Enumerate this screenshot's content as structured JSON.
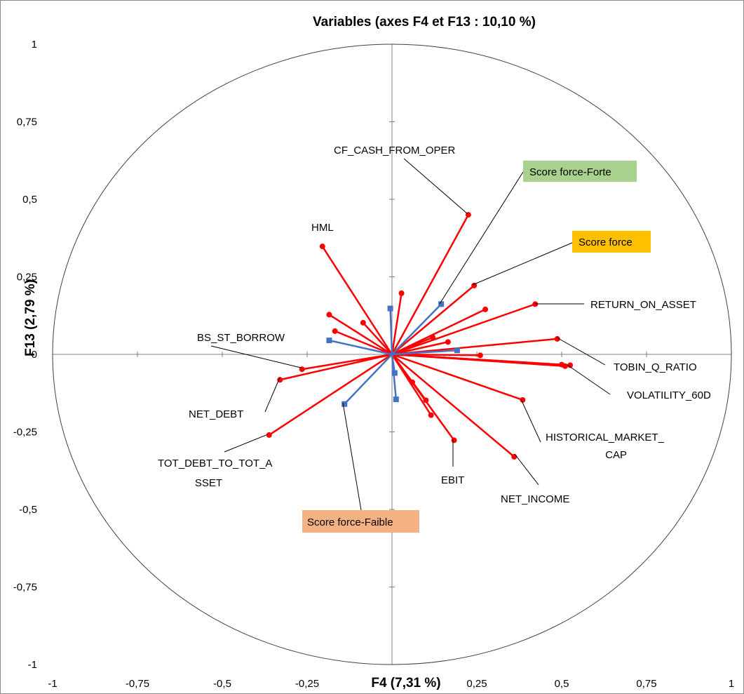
{
  "chart_data": {
    "type": "scatter",
    "title": "Variables (axes F4 et F13 : 10,10 %)",
    "xlabel": "F4 (7,31 %)",
    "ylabel": "F13 (2,79 %)",
    "xlim": [
      -1,
      1
    ],
    "ylim": [
      -1,
      1
    ],
    "grid": false,
    "unit_circle": true,
    "x_ticks": [
      -1,
      -0.75,
      -0.5,
      -0.25,
      0.25,
      0.5,
      0.75,
      1
    ],
    "x_tick_labels": [
      "-1",
      "-0,75",
      "-0,5",
      "-0,25",
      "0,25",
      "0,5",
      "0,75",
      "1"
    ],
    "y_ticks": [
      1,
      0.75,
      0.5,
      0.25,
      0,
      -0.25,
      -0.5,
      -0.75,
      -1
    ],
    "y_tick_labels": [
      "1",
      "0,75",
      "0,5",
      "0,25",
      "0",
      "-0,25",
      "-0,5",
      "-0,75",
      "-1"
    ],
    "colors": {
      "active": "#ff0000",
      "supplementary": "#4472c4",
      "axis": "#808080",
      "circle": "#404040"
    },
    "series": [
      {
        "name": "active",
        "color": "#ff0000",
        "marker": "circle",
        "points": [
          {
            "x": 0.225,
            "y": 0.45,
            "label": "CF_CASH_FROM_OPER"
          },
          {
            "x": -0.205,
            "y": 0.348,
            "label": "HML"
          },
          {
            "x": 0.242,
            "y": 0.222
          },
          {
            "x": 0.422,
            "y": 0.162,
            "label": "RETURN_ON_ASSET"
          },
          {
            "x": 0.275,
            "y": 0.145
          },
          {
            "x": 0.028,
            "y": 0.197
          },
          {
            "x": -0.185,
            "y": 0.128
          },
          {
            "x": -0.085,
            "y": 0.102
          },
          {
            "x": -0.168,
            "y": 0.075
          },
          {
            "x": 0.12,
            "y": 0.055
          },
          {
            "x": 0.165,
            "y": 0.04
          },
          {
            "x": 0.487,
            "y": 0.05,
            "label": "TOBIN_Q_RATIO"
          },
          {
            "x": 0.26,
            "y": -0.003
          },
          {
            "x": 0.525,
            "y": -0.035,
            "label": "VOLATILITY_60D"
          },
          {
            "x": 0.51,
            "y": -0.038
          },
          {
            "x": 0.5,
            "y": -0.033
          },
          {
            "x": -0.265,
            "y": -0.048,
            "label": "BS_ST_BORROW"
          },
          {
            "x": -0.33,
            "y": -0.082,
            "label": "NET_DEBT"
          },
          {
            "x": -0.362,
            "y": -0.26,
            "label": "TOT_DEBT_TO_TOT_ASSET"
          },
          {
            "x": 0.385,
            "y": -0.147,
            "label": "HISTORICAL_MARKET_CAP"
          },
          {
            "x": 0.36,
            "y": -0.33,
            "label": "NET_INCOME"
          },
          {
            "x": 0.183,
            "y": -0.277,
            "label": "EBIT"
          },
          {
            "x": 0.115,
            "y": -0.196
          },
          {
            "x": 0.1,
            "y": -0.148
          },
          {
            "x": 0.06,
            "y": -0.09
          }
        ]
      },
      {
        "name": "supplementary",
        "color": "#4472c4",
        "marker": "square",
        "points": [
          {
            "x": 0.145,
            "y": 0.162,
            "label": "Score force-Forte"
          },
          {
            "x": -0.005,
            "y": 0.148
          },
          {
            "x": -0.185,
            "y": 0.045
          },
          {
            "x": 0.192,
            "y": 0.013
          },
          {
            "x": 0.008,
            "y": -0.06
          },
          {
            "x": 0.012,
            "y": -0.145
          },
          {
            "x": -0.14,
            "y": -0.16,
            "label": "Score force-Faible"
          }
        ]
      }
    ],
    "annotations": [
      {
        "text": "CF_CASH_FROM_OPER"
      },
      {
        "text": "HML"
      },
      {
        "text": "Score force-Forte",
        "background": "#a9d18e"
      },
      {
        "text": "Score force",
        "background": "#ffc000"
      },
      {
        "text": "RETURN_ON_ASSET"
      },
      {
        "text": "BS_ST_BORROW"
      },
      {
        "text": "TOBIN_Q_RATIO"
      },
      {
        "text": "VOLATILITY_60D"
      },
      {
        "text": "NET_DEBT"
      },
      {
        "text": "HISTORICAL_MARKET_",
        "text2": "CAP"
      },
      {
        "text": "TOT_DEBT_TO_TOT_A",
        "text2": "SSET"
      },
      {
        "text": "EBIT"
      },
      {
        "text": "NET_INCOME"
      },
      {
        "text": "Score force-Faible",
        "background": "#f4b183"
      }
    ]
  }
}
